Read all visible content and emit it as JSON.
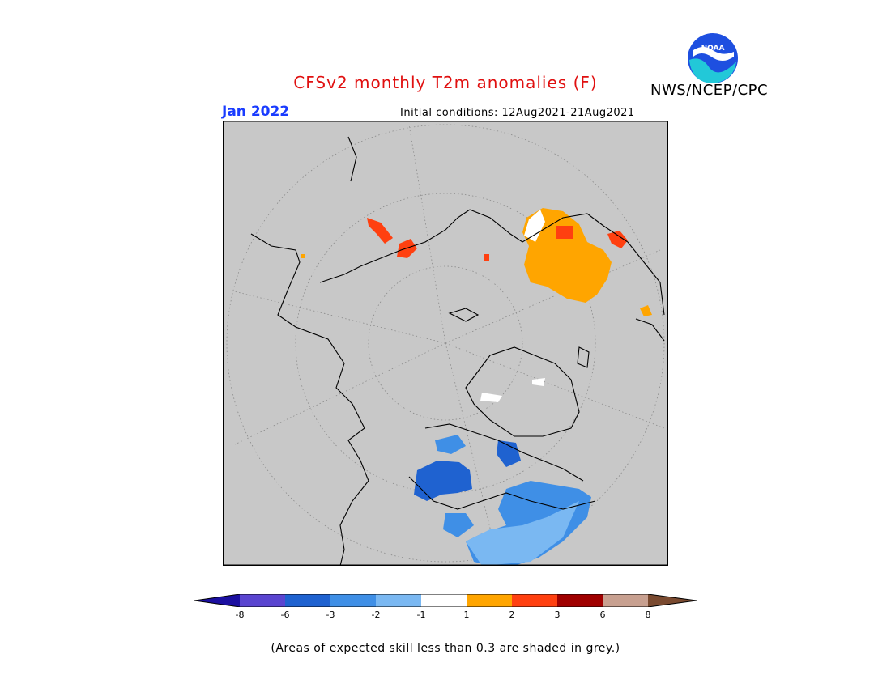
{
  "title": "CFSv2 monthly T2m anomalies (F)",
  "agency": "NWS/NCEP/CPC",
  "logo_text": "NOAA",
  "month_label": "Jan 2022",
  "initial_conditions": "Initial conditions: 12Aug2021-21Aug2021",
  "note": "(Areas of expected skill less than 0.3 are shaded in grey.)",
  "colorbar": {
    "ticks": [
      "-8",
      "-6",
      "-3",
      "-2",
      "-1",
      "1",
      "2",
      "3",
      "6",
      "8"
    ],
    "colors": [
      "#1b0fa0",
      "#5a45d0",
      "#1f62d0",
      "#3f8fe6",
      "#7ab8f2",
      "#ffffff",
      "#ffa500",
      "#ff4010",
      "#a00000",
      "#c8a090",
      "#7a4a30"
    ]
  },
  "map_colors": {
    "background": "#c8c8c8",
    "coast": "#000000",
    "grid": "#8a8a8a"
  }
}
